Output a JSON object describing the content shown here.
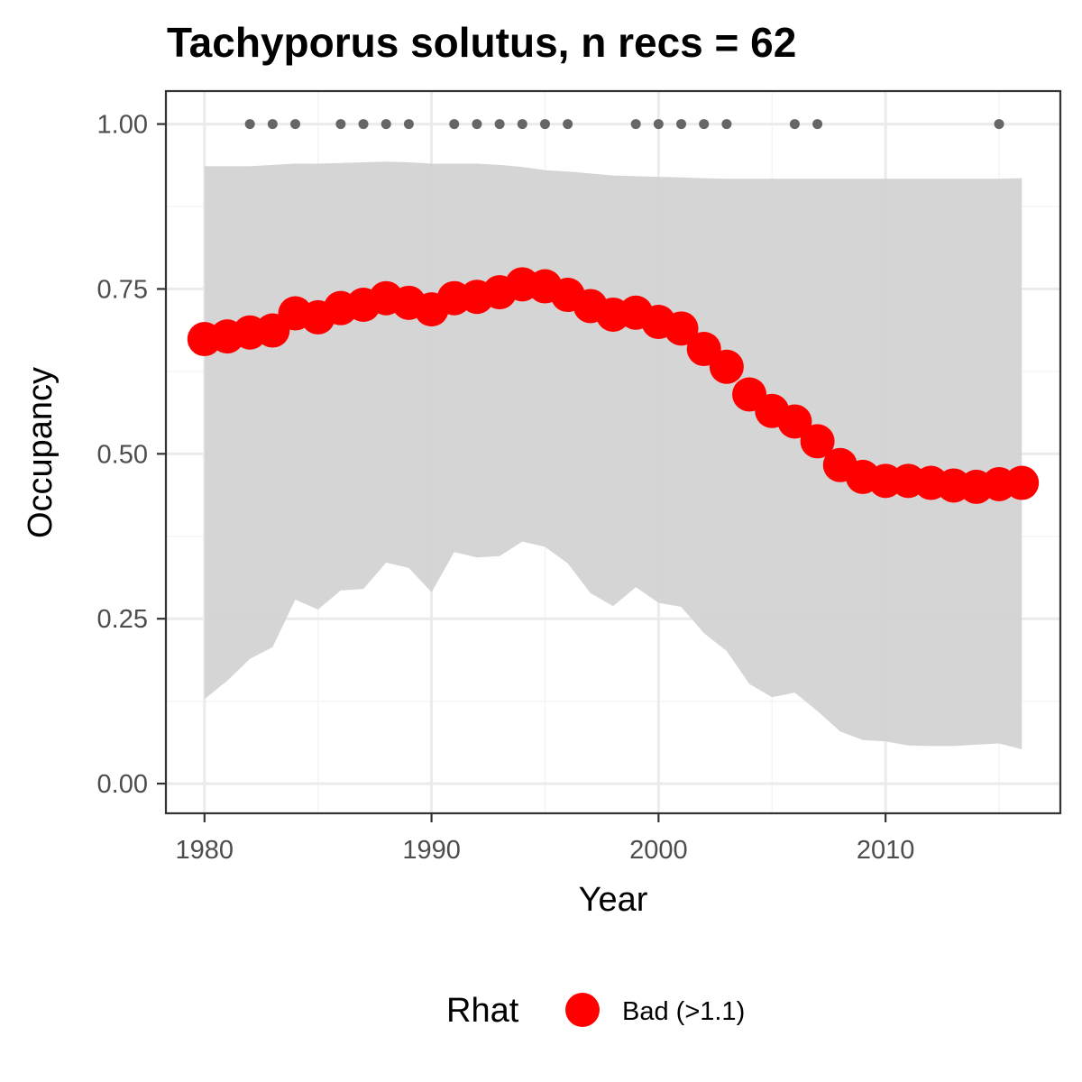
{
  "chart_data": {
    "type": "line",
    "title": "Tachyporus solutus, n recs = 62",
    "xlabel": "Year",
    "ylabel": "Occupancy",
    "xlim": [
      1978.3,
      2017.7
    ],
    "ylim": [
      -0.045,
      1.05
    ],
    "x_ticks": [
      {
        "value": 1980,
        "label": "1980"
      },
      {
        "value": 1990,
        "label": "1990"
      },
      {
        "value": 2000,
        "label": "2000"
      },
      {
        "value": 2010,
        "label": "2010"
      }
    ],
    "y_ticks": [
      {
        "value": 0,
        "label": "0.00"
      },
      {
        "value": 0.25,
        "label": "0.25"
      },
      {
        "value": 0.5,
        "label": "0.50"
      },
      {
        "value": 0.75,
        "label": "0.75"
      },
      {
        "value": 1.0,
        "label": "1.00"
      }
    ],
    "grid": true,
    "years": [
      1980,
      1981,
      1982,
      1983,
      1984,
      1985,
      1986,
      1987,
      1988,
      1989,
      1990,
      1991,
      1992,
      1993,
      1994,
      1995,
      1996,
      1997,
      1998,
      1999,
      2000,
      2001,
      2002,
      2003,
      2004,
      2005,
      2006,
      2007,
      2008,
      2009,
      2010,
      2011,
      2012,
      2013,
      2014,
      2015,
      2016
    ],
    "occupancy_mean": [
      0.674,
      0.678,
      0.684,
      0.687,
      0.713,
      0.707,
      0.721,
      0.726,
      0.736,
      0.729,
      0.719,
      0.736,
      0.738,
      0.745,
      0.757,
      0.754,
      0.741,
      0.724,
      0.711,
      0.714,
      0.7,
      0.69,
      0.659,
      0.632,
      0.59,
      0.565,
      0.549,
      0.519,
      0.483,
      0.465,
      0.459,
      0.459,
      0.456,
      0.452,
      0.45,
      0.454,
      0.456
    ],
    "upper_ci": [
      0.936,
      0.936,
      0.936,
      0.938,
      0.94,
      0.94,
      0.941,
      0.942,
      0.943,
      0.942,
      0.94,
      0.94,
      0.94,
      0.938,
      0.935,
      0.93,
      0.928,
      0.925,
      0.922,
      0.921,
      0.92,
      0.919,
      0.918,
      0.917,
      0.917,
      0.917,
      0.917,
      0.917,
      0.917,
      0.917,
      0.917,
      0.917,
      0.917,
      0.917,
      0.917,
      0.917,
      0.918
    ],
    "lower_ci": [
      0.128,
      0.156,
      0.189,
      0.207,
      0.279,
      0.264,
      0.293,
      0.295,
      0.335,
      0.327,
      0.29,
      0.351,
      0.343,
      0.345,
      0.367,
      0.359,
      0.334,
      0.289,
      0.269,
      0.298,
      0.274,
      0.268,
      0.228,
      0.201,
      0.151,
      0.131,
      0.138,
      0.11,
      0.079,
      0.066,
      0.064,
      0.058,
      0.057,
      0.057,
      0.059,
      0.061,
      0.052
    ],
    "record_years": [
      1982,
      1983,
      1984,
      1986,
      1987,
      1988,
      1989,
      1991,
      1992,
      1993,
      1994,
      1995,
      1996,
      1999,
      2000,
      2001,
      2002,
      2003,
      2006,
      2007,
      2015
    ],
    "record_value": 1.0,
    "colors": {
      "points": "#ff0000",
      "ribbon": "#d3d3d3",
      "record_dots": "#666666",
      "grid_major": "#ebebeb",
      "grid_minor": "#f5f5f5",
      "panel_border": "#333333"
    },
    "legend": {
      "title": "Rhat",
      "entries": [
        {
          "label": "Bad (>1.1)",
          "color": "#ff0000"
        }
      ],
      "position": "bottom"
    }
  }
}
